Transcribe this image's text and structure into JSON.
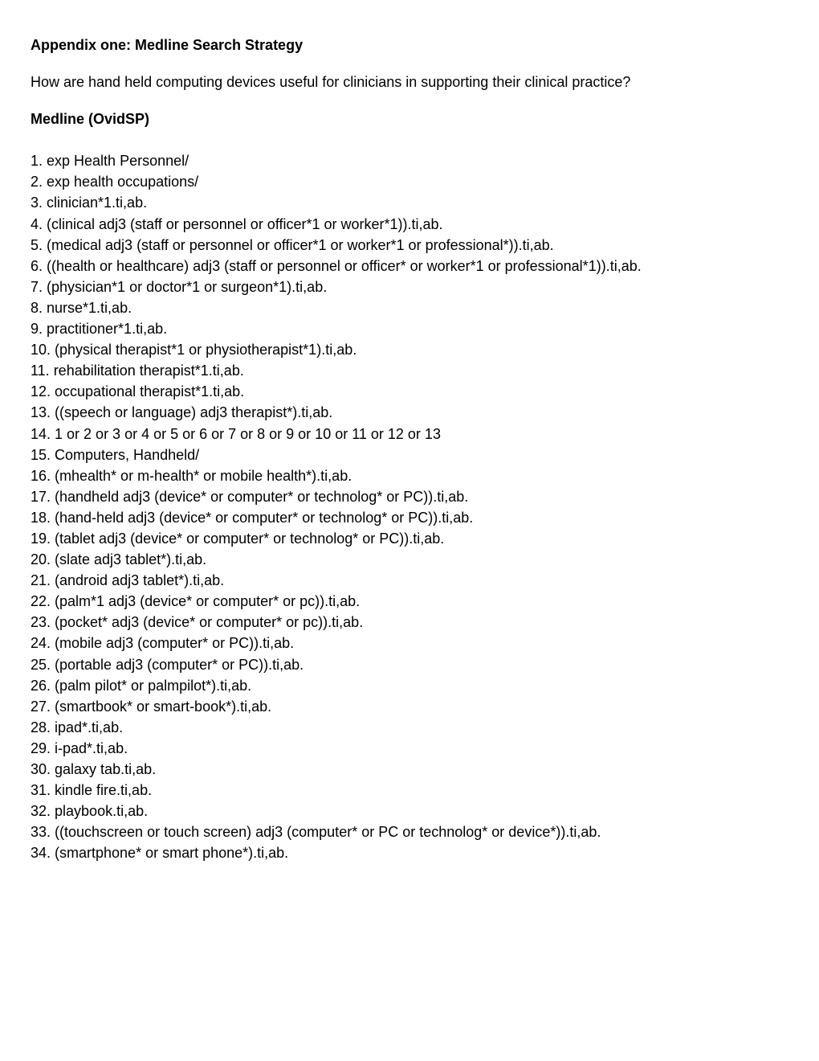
{
  "title": "Appendix one: Medline Search Strategy",
  "question": "How are hand held computing devices useful for clinicians in supporting their clinical practice?",
  "subtitle": "Medline (OvidSP)",
  "items": [
    "1. exp Health Personnel/",
    "2. exp health occupations/",
    "3. clinician*1.ti,ab.",
    "4. (clinical adj3 (staff or personnel or officer*1 or worker*1)).ti,ab.",
    "5. (medical adj3 (staff or personnel or officer*1 or worker*1 or professional*)).ti,ab.",
    "6. ((health or healthcare) adj3 (staff or personnel or officer* or worker*1 or professional*1)).ti,ab.",
    "7. (physician*1 or doctor*1 or surgeon*1).ti,ab.",
    "8. nurse*1.ti,ab.",
    "9. practitioner*1.ti,ab.",
    "10. (physical therapist*1 or physiotherapist*1).ti,ab.",
    "11. rehabilitation therapist*1.ti,ab.",
    "12. occupational therapist*1.ti,ab.",
    "13. ((speech or language) adj3 therapist*).ti,ab.",
    "14. 1 or 2 or 3 or 4 or 5 or 6 or 7 or 8 or 9 or 10 or 11 or 12 or 13",
    "15. Computers, Handheld/",
    "16. (mhealth* or m-health* or mobile health*).ti,ab.",
    "17. (handheld adj3 (device* or computer* or technolog* or PC)).ti,ab.",
    "18. (hand-held adj3 (device* or computer* or technolog* or PC)).ti,ab.",
    "19. (tablet adj3 (device* or computer* or technolog* or PC)).ti,ab.",
    "20. (slate adj3 tablet*).ti,ab.",
    "21. (android adj3 tablet*).ti,ab.",
    "22. (palm*1 adj3 (device* or computer* or pc)).ti,ab.",
    "23. (pocket* adj3 (device* or computer* or pc)).ti,ab.",
    "24. (mobile adj3 (computer* or PC)).ti,ab.",
    "25. (portable adj3 (computer* or PC)).ti,ab.",
    "26. (palm pilot* or palmpilot*).ti,ab.",
    "27. (smartbook* or smart-book*).ti,ab.",
    "28. ipad*.ti,ab.",
    "29. i-pad*.ti,ab.",
    "30. galaxy tab.ti,ab.",
    "31. kindle fire.ti,ab.",
    "32. playbook.ti,ab.",
    "33. ((touchscreen or touch screen) adj3 (computer* or PC or technolog* or device*)).ti,ab.",
    "34. (smartphone* or smart phone*).ti,ab."
  ]
}
